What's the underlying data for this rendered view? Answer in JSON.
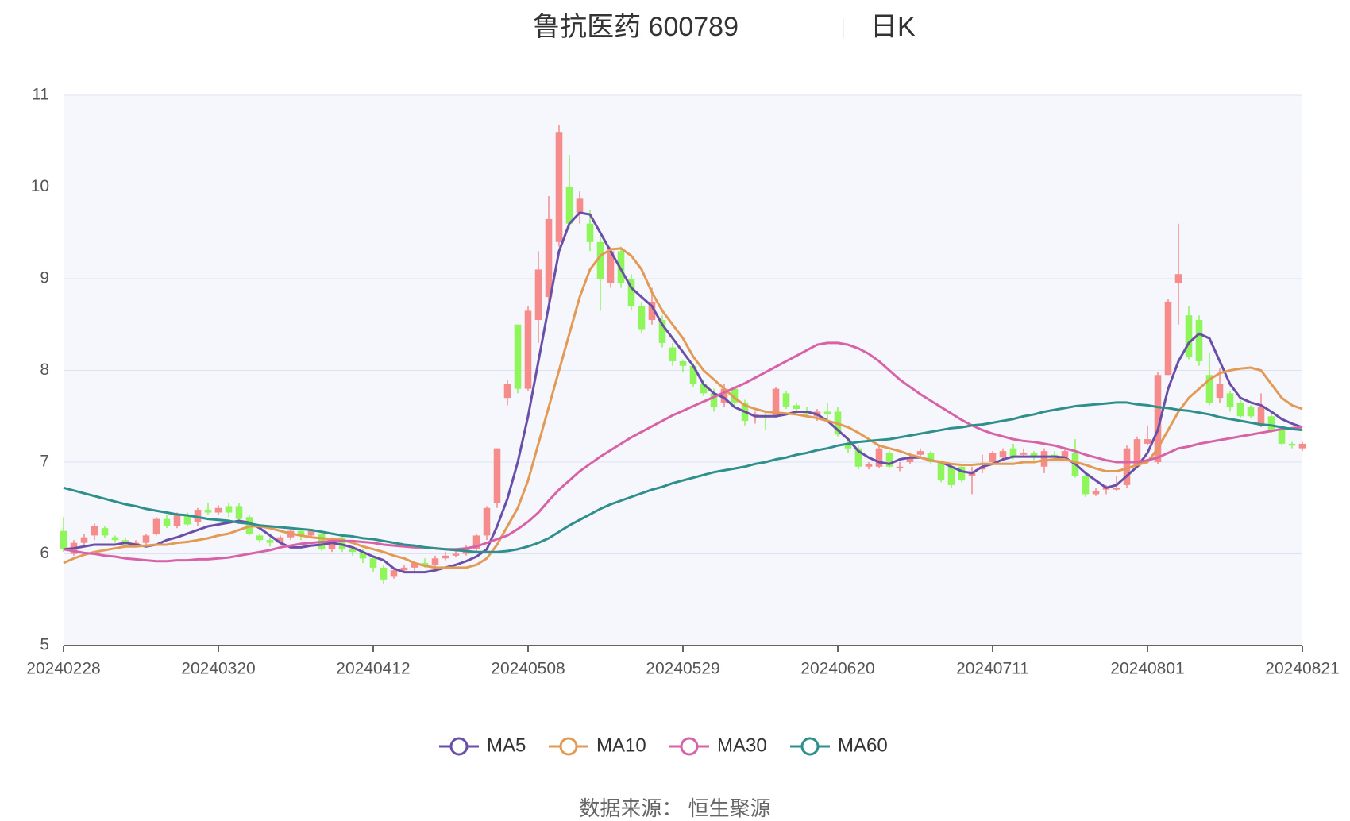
{
  "chart_data": {
    "type": "candlestick",
    "title": "鲁抗医药 600789",
    "subtitle": "日K",
    "source": "数据来源： 恒生聚源",
    "categories": [
      "20240228",
      null,
      null,
      null,
      null,
      null,
      null,
      null,
      null,
      null,
      null,
      null,
      null,
      null,
      null,
      "20240320",
      null,
      null,
      null,
      null,
      null,
      null,
      null,
      null,
      null,
      null,
      null,
      null,
      null,
      null,
      "20240412",
      null,
      null,
      null,
      null,
      null,
      null,
      null,
      null,
      null,
      null,
      null,
      null,
      null,
      null,
      "20240508",
      null,
      null,
      null,
      null,
      null,
      null,
      null,
      null,
      null,
      null,
      null,
      null,
      null,
      null,
      "20240529",
      null,
      null,
      null,
      null,
      null,
      null,
      null,
      null,
      null,
      null,
      null,
      null,
      null,
      null,
      "20240620",
      null,
      null,
      null,
      null,
      null,
      null,
      null,
      null,
      null,
      null,
      null,
      null,
      null,
      null,
      "20240711",
      null,
      null,
      null,
      null,
      null,
      null,
      null,
      null,
      null,
      null,
      null,
      null,
      null,
      null,
      "20240801",
      null,
      null,
      null,
      null,
      null,
      null,
      null,
      null,
      null,
      null,
      null,
      null,
      null,
      null,
      "20240821"
    ],
    "ohlc": [
      [
        6.25,
        6.05,
        6.02,
        6.4
      ],
      [
        6.0,
        6.12,
        5.98,
        6.15
      ],
      [
        6.12,
        6.18,
        6.1,
        6.22
      ],
      [
        6.2,
        6.3,
        6.15,
        6.33
      ],
      [
        6.28,
        6.2,
        6.17,
        6.3
      ],
      [
        6.18,
        6.15,
        6.12,
        6.2
      ],
      [
        6.15,
        6.12,
        6.08,
        6.18
      ],
      [
        6.1,
        6.12,
        6.07,
        6.15
      ],
      [
        6.12,
        6.2,
        6.1,
        6.22
      ],
      [
        6.22,
        6.38,
        6.2,
        6.4
      ],
      [
        6.38,
        6.3,
        6.28,
        6.42
      ],
      [
        6.3,
        6.42,
        6.28,
        6.45
      ],
      [
        6.42,
        6.32,
        6.3,
        6.45
      ],
      [
        6.35,
        6.48,
        6.3,
        6.5
      ],
      [
        6.48,
        6.45,
        6.42,
        6.55
      ],
      [
        6.45,
        6.5,
        6.42,
        6.53
      ],
      [
        6.52,
        6.45,
        6.4,
        6.55
      ],
      [
        6.52,
        6.38,
        6.35,
        6.55
      ],
      [
        6.4,
        6.22,
        6.2,
        6.42
      ],
      [
        6.2,
        6.15,
        6.12,
        6.22
      ],
      [
        6.15,
        6.12,
        6.08,
        6.18
      ],
      [
        6.12,
        6.18,
        6.1,
        6.2
      ],
      [
        6.18,
        6.25,
        6.15,
        6.28
      ],
      [
        6.25,
        6.2,
        6.15,
        6.28
      ],
      [
        6.2,
        6.25,
        6.18,
        6.27
      ],
      [
        6.22,
        6.05,
        6.03,
        6.24
      ],
      [
        6.05,
        6.15,
        6.02,
        6.18
      ],
      [
        6.18,
        6.05,
        6.02,
        6.2
      ],
      [
        6.05,
        6.02,
        5.98,
        6.08
      ],
      [
        6.02,
        5.95,
        5.9,
        6.05
      ],
      [
        5.95,
        5.85,
        5.8,
        5.98
      ],
      [
        5.85,
        5.72,
        5.67,
        5.88
      ],
      [
        5.75,
        5.82,
        5.73,
        5.85
      ],
      [
        5.82,
        5.85,
        5.8,
        5.88
      ],
      [
        5.85,
        5.9,
        5.8,
        5.92
      ],
      [
        5.9,
        5.88,
        5.85,
        5.95
      ],
      [
        5.88,
        5.95,
        5.86,
        5.98
      ],
      [
        5.95,
        5.98,
        5.93,
        6.02
      ],
      [
        5.98,
        6.0,
        5.96,
        6.04
      ],
      [
        6.0,
        6.05,
        5.98,
        6.1
      ],
      [
        6.05,
        6.2,
        6.02,
        6.22
      ],
      [
        6.2,
        6.5,
        6.15,
        6.52
      ],
      [
        6.55,
        7.15,
        6.5,
        7.15
      ],
      [
        7.7,
        7.85,
        7.62,
        7.9
      ],
      [
        8.5,
        7.8,
        7.75,
        8.5
      ],
      [
        7.8,
        8.65,
        7.78,
        8.7
      ],
      [
        8.55,
        9.1,
        8.3,
        9.3
      ],
      [
        8.8,
        9.65,
        8.75,
        9.9
      ],
      [
        9.4,
        10.6,
        9.35,
        10.68
      ],
      [
        10.0,
        9.6,
        9.55,
        10.35
      ],
      [
        9.72,
        9.88,
        9.6,
        9.95
      ],
      [
        9.6,
        9.4,
        9.3,
        9.75
      ],
      [
        9.4,
        9.0,
        8.65,
        9.45
      ],
      [
        8.95,
        9.3,
        8.9,
        9.35
      ],
      [
        9.3,
        8.95,
        8.9,
        9.35
      ],
      [
        9.0,
        8.7,
        8.65,
        9.05
      ],
      [
        8.7,
        8.45,
        8.4,
        8.75
      ],
      [
        8.55,
        8.75,
        8.5,
        8.9
      ],
      [
        8.55,
        8.3,
        8.25,
        8.6
      ],
      [
        8.25,
        8.1,
        8.05,
        8.3
      ],
      [
        8.1,
        8.05,
        7.98,
        8.12
      ],
      [
        8.05,
        7.85,
        7.82,
        8.08
      ],
      [
        7.85,
        7.75,
        7.72,
        7.9
      ],
      [
        7.75,
        7.6,
        7.55,
        7.8
      ],
      [
        7.65,
        7.8,
        7.6,
        7.85
      ],
      [
        7.8,
        7.65,
        7.6,
        7.82
      ],
      [
        7.65,
        7.45,
        7.4,
        7.68
      ],
      [
        7.5,
        7.52,
        7.42,
        7.55
      ],
      [
        7.5,
        7.48,
        7.35,
        7.55
      ],
      [
        7.5,
        7.8,
        7.48,
        7.82
      ],
      [
        7.75,
        7.6,
        7.58,
        7.78
      ],
      [
        7.62,
        7.58,
        7.55,
        7.65
      ],
      [
        7.55,
        7.52,
        7.5,
        7.6
      ],
      [
        7.5,
        7.55,
        7.45,
        7.58
      ],
      [
        7.55,
        7.52,
        7.45,
        7.65
      ],
      [
        7.55,
        7.3,
        7.28,
        7.6
      ],
      [
        7.2,
        7.15,
        7.1,
        7.25
      ],
      [
        7.15,
        6.95,
        6.92,
        7.18
      ],
      [
        6.95,
        6.98,
        6.92,
        7.0
      ],
      [
        6.95,
        7.15,
        6.93,
        7.18
      ],
      [
        7.1,
        6.95,
        6.93,
        7.12
      ],
      [
        6.95,
        6.95,
        6.9,
        7.0
      ],
      [
        7.0,
        7.05,
        6.98,
        7.1
      ],
      [
        7.08,
        7.12,
        7.05,
        7.15
      ],
      [
        7.1,
        7.0,
        6.98,
        7.12
      ],
      [
        7.0,
        6.8,
        6.78,
        7.02
      ],
      [
        6.95,
        6.75,
        6.72,
        6.98
      ],
      [
        6.95,
        6.8,
        6.78,
        6.98
      ],
      [
        6.85,
        6.9,
        6.65,
        6.95
      ],
      [
        6.92,
        6.95,
        6.88,
        7.08
      ],
      [
        7.0,
        7.1,
        6.98,
        7.12
      ],
      [
        7.05,
        7.12,
        7.02,
        7.15
      ],
      [
        7.15,
        7.05,
        7.03,
        7.2
      ],
      [
        7.08,
        7.1,
        7.05,
        7.15
      ],
      [
        7.1,
        7.05,
        7.02,
        7.12
      ],
      [
        6.95,
        7.12,
        6.88,
        7.15
      ],
      [
        7.08,
        7.05,
        7.02,
        7.12
      ],
      [
        7.05,
        7.12,
        7.02,
        7.15
      ],
      [
        7.1,
        6.85,
        6.83,
        7.25
      ],
      [
        6.85,
        6.65,
        6.62,
        6.88
      ],
      [
        6.65,
        6.68,
        6.63,
        6.72
      ],
      [
        6.7,
        6.72,
        6.65,
        6.75
      ],
      [
        6.7,
        6.72,
        6.68,
        6.85
      ],
      [
        6.75,
        7.15,
        6.72,
        7.18
      ],
      [
        6.95,
        7.25,
        6.93,
        7.28
      ],
      [
        7.2,
        7.25,
        7.18,
        7.4
      ],
      [
        7.0,
        7.95,
        6.98,
        7.98
      ],
      [
        7.95,
        8.75,
        7.95,
        8.78
      ],
      [
        8.95,
        9.05,
        8.5,
        9.6
      ],
      [
        8.6,
        8.15,
        8.12,
        8.7
      ],
      [
        8.55,
        8.1,
        8.05,
        8.6
      ],
      [
        7.95,
        7.65,
        7.62,
        8.2
      ],
      [
        7.7,
        7.85,
        7.65,
        8.02
      ],
      [
        7.75,
        7.6,
        7.55,
        7.78
      ],
      [
        7.65,
        7.5,
        7.48,
        7.68
      ],
      [
        7.6,
        7.5,
        7.48,
        7.62
      ],
      [
        7.4,
        7.6,
        7.38,
        7.75
      ],
      [
        7.5,
        7.35,
        7.32,
        7.55
      ],
      [
        7.35,
        7.2,
        7.18,
        7.38
      ],
      [
        7.2,
        7.18,
        7.15,
        7.22
      ],
      [
        7.15,
        7.2,
        7.12,
        7.22
      ]
    ],
    "up_color": "#f58b8b",
    "down_color": "#8ef55a",
    "series": [
      {
        "name": "MA5",
        "color": "#6a4fa8",
        "values": [
          6.05,
          6.06,
          6.08,
          6.1,
          6.1,
          6.1,
          6.12,
          6.1,
          6.08,
          6.1,
          6.15,
          6.18,
          6.22,
          6.26,
          6.3,
          6.32,
          6.34,
          6.36,
          6.34,
          6.28,
          6.2,
          6.12,
          6.07,
          6.07,
          6.09,
          6.1,
          6.12,
          6.1,
          6.07,
          6.02,
          5.97,
          5.93,
          5.84,
          5.8,
          5.8,
          5.8,
          5.82,
          5.85,
          5.88,
          5.92,
          5.97,
          6.05,
          6.3,
          6.6,
          7.0,
          7.5,
          8.1,
          8.7,
          9.3,
          9.6,
          9.72,
          9.7,
          9.5,
          9.3,
          9.1,
          8.9,
          8.8,
          8.7,
          8.5,
          8.35,
          8.2,
          8.05,
          7.85,
          7.75,
          7.7,
          7.6,
          7.55,
          7.5,
          7.5,
          7.5,
          7.52,
          7.55,
          7.55,
          7.52,
          7.45,
          7.35,
          7.25,
          7.12,
          7.05,
          7.0,
          6.98,
          7.03,
          7.05,
          7.05,
          7.02,
          7.0,
          6.95,
          6.9,
          6.88,
          6.95,
          6.98,
          7.03,
          7.06,
          7.06,
          7.06,
          7.06,
          7.06,
          7.05,
          6.98,
          6.88,
          6.8,
          6.72,
          6.75,
          6.85,
          6.95,
          7.1,
          7.35,
          7.8,
          8.1,
          8.3,
          8.4,
          8.35,
          8.1,
          7.85,
          7.7,
          7.65,
          7.62,
          7.55,
          7.47,
          7.42,
          7.38
        ]
      },
      {
        "name": "MA10",
        "color": "#e29a55",
        "values": [
          5.9,
          5.95,
          5.99,
          6.02,
          6.04,
          6.06,
          6.08,
          6.08,
          6.09,
          6.1,
          6.1,
          6.12,
          6.13,
          6.15,
          6.17,
          6.2,
          6.22,
          6.26,
          6.3,
          6.3,
          6.28,
          6.25,
          6.22,
          6.2,
          6.18,
          6.17,
          6.16,
          6.15,
          6.12,
          6.08,
          6.05,
          6.02,
          5.98,
          5.95,
          5.9,
          5.87,
          5.85,
          5.85,
          5.85,
          5.85,
          5.88,
          5.95,
          6.1,
          6.3,
          6.5,
          6.8,
          7.2,
          7.6,
          8.0,
          8.4,
          8.8,
          9.1,
          9.25,
          9.32,
          9.33,
          9.25,
          9.1,
          8.85,
          8.65,
          8.5,
          8.35,
          8.15,
          8.0,
          7.9,
          7.8,
          7.7,
          7.62,
          7.58,
          7.55,
          7.54,
          7.53,
          7.52,
          7.5,
          7.48,
          7.45,
          7.42,
          7.38,
          7.32,
          7.25,
          7.18,
          7.15,
          7.12,
          7.08,
          7.05,
          7.02,
          7.0,
          6.98,
          6.97,
          6.97,
          6.98,
          6.98,
          6.98,
          6.98,
          7.0,
          7.0,
          7.02,
          7.03,
          7.03,
          7.0,
          6.97,
          6.93,
          6.9,
          6.9,
          6.93,
          6.97,
          7.0,
          7.15,
          7.35,
          7.55,
          7.7,
          7.8,
          7.9,
          7.97,
          8.0,
          8.02,
          8.03,
          8.0,
          7.85,
          7.7,
          7.62,
          7.58
        ]
      },
      {
        "name": "MA30",
        "color": "#d862a8",
        "values": [
          6.05,
          6.03,
          6.01,
          6.0,
          5.98,
          5.97,
          5.95,
          5.94,
          5.93,
          5.92,
          5.92,
          5.93,
          5.93,
          5.94,
          5.94,
          5.95,
          5.96,
          5.98,
          6.0,
          6.02,
          6.04,
          6.07,
          6.09,
          6.11,
          6.12,
          6.13,
          6.14,
          6.14,
          6.14,
          6.13,
          6.12,
          6.1,
          6.09,
          6.08,
          6.07,
          6.07,
          6.06,
          6.05,
          6.05,
          6.06,
          6.08,
          6.12,
          6.16,
          6.2,
          6.27,
          6.35,
          6.45,
          6.58,
          6.7,
          6.8,
          6.9,
          6.98,
          7.06,
          7.13,
          7.2,
          7.27,
          7.33,
          7.39,
          7.45,
          7.51,
          7.56,
          7.61,
          7.66,
          7.71,
          7.76,
          7.81,
          7.86,
          7.92,
          7.98,
          8.04,
          8.1,
          8.16,
          8.22,
          8.28,
          8.3,
          8.3,
          8.28,
          8.24,
          8.18,
          8.1,
          8.0,
          7.9,
          7.82,
          7.74,
          7.67,
          7.6,
          7.53,
          7.46,
          7.4,
          7.35,
          7.31,
          7.28,
          7.25,
          7.23,
          7.22,
          7.2,
          7.18,
          7.15,
          7.12,
          7.08,
          7.05,
          7.02,
          7.0,
          7.0,
          7.0,
          7.02,
          7.05,
          7.1,
          7.15,
          7.17,
          7.2,
          7.22,
          7.24,
          7.26,
          7.28,
          7.3,
          7.32,
          7.34,
          7.36,
          7.37,
          7.38
        ]
      },
      {
        "name": "MA60",
        "color": "#2f8f8c",
        "values": [
          6.72,
          6.69,
          6.66,
          6.63,
          6.6,
          6.57,
          6.54,
          6.52,
          6.49,
          6.47,
          6.45,
          6.43,
          6.42,
          6.4,
          6.38,
          6.37,
          6.36,
          6.34,
          6.33,
          6.31,
          6.3,
          6.29,
          6.28,
          6.27,
          6.26,
          6.24,
          6.22,
          6.2,
          6.19,
          6.17,
          6.16,
          6.14,
          6.12,
          6.1,
          6.09,
          6.07,
          6.06,
          6.05,
          6.04,
          6.03,
          6.02,
          6.02,
          6.02,
          6.03,
          6.05,
          6.08,
          6.12,
          6.17,
          6.24,
          6.31,
          6.37,
          6.43,
          6.49,
          6.54,
          6.58,
          6.62,
          6.66,
          6.7,
          6.73,
          6.77,
          6.8,
          6.83,
          6.86,
          6.89,
          6.91,
          6.93,
          6.95,
          6.98,
          7.0,
          7.03,
          7.05,
          7.08,
          7.1,
          7.13,
          7.15,
          7.18,
          7.2,
          7.22,
          7.23,
          7.24,
          7.25,
          7.27,
          7.29,
          7.31,
          7.33,
          7.35,
          7.37,
          7.38,
          7.4,
          7.41,
          7.43,
          7.45,
          7.47,
          7.5,
          7.52,
          7.55,
          7.57,
          7.59,
          7.61,
          7.62,
          7.63,
          7.64,
          7.65,
          7.65,
          7.63,
          7.62,
          7.6,
          7.59,
          7.57,
          7.56,
          7.54,
          7.52,
          7.49,
          7.47,
          7.45,
          7.43,
          7.41,
          7.4,
          7.38,
          7.36,
          7.35
        ]
      }
    ],
    "ylim": [
      5,
      11
    ],
    "yticks": [
      5,
      6,
      7,
      8,
      9,
      10,
      11
    ],
    "grid": true,
    "legend": "bottom"
  }
}
